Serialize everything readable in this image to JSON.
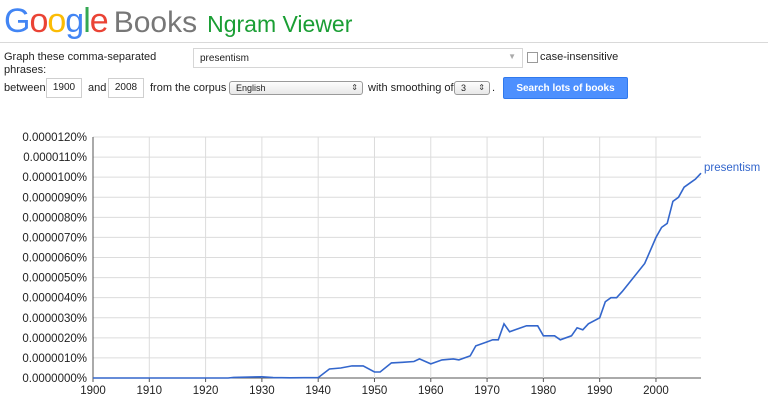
{
  "header": {
    "logo_google": "Google",
    "logo_books": "Books",
    "title": "Ngram Viewer",
    "logo_colors": [
      "#4285f4",
      "#ea4335",
      "#fbbc05",
      "#4285f4",
      "#34a853",
      "#ea4335"
    ]
  },
  "form": {
    "phrases_label_line1": "Graph these comma-separated",
    "phrases_label_line2": "phrases:",
    "phrases_value": "presentism",
    "case_insensitive_label": "case-insensitive",
    "case_insensitive_checked": false,
    "between_label": "between",
    "start_year": "1900",
    "and_label": "and",
    "end_year": "2008",
    "corpus_label": "from the corpus",
    "corpus_value": "English",
    "smoothing_label": "with smoothing of",
    "smoothing_value": "3",
    "period": ".",
    "search_button": "Search lots of books"
  },
  "chart_data": {
    "type": "line",
    "x_ticks": [
      1900,
      1910,
      1920,
      1930,
      1940,
      1950,
      1960,
      1970,
      1980,
      1990,
      2000
    ],
    "y_ticks": [
      "0.0000000%",
      "0.0000010%",
      "0.0000020%",
      "0.0000030%",
      "0.0000040%",
      "0.0000050%",
      "0.0000060%",
      "0.0000070%",
      "0.0000080%",
      "0.0000090%",
      "0.0000100%",
      "0.0000110%",
      "0.0000120%"
    ],
    "xlim": [
      1900,
      2008
    ],
    "ylim": [
      0,
      1.2e-05
    ],
    "grid": true,
    "series": [
      {
        "name": "presentism",
        "color": "#3366cc",
        "points": [
          [
            1900,
            0
          ],
          [
            1924,
            0
          ],
          [
            1925,
            3e-08
          ],
          [
            1930,
            6e-08
          ],
          [
            1932,
            2e-08
          ],
          [
            1935,
            1e-08
          ],
          [
            1940,
            2e-08
          ],
          [
            1942,
            4.5e-07
          ],
          [
            1944,
            5e-07
          ],
          [
            1946,
            6e-07
          ],
          [
            1948,
            6e-07
          ],
          [
            1950,
            3e-07
          ],
          [
            1951,
            3e-07
          ],
          [
            1953,
            7.5e-07
          ],
          [
            1955,
            7.8e-07
          ],
          [
            1957,
            8.2e-07
          ],
          [
            1958,
            9.5e-07
          ],
          [
            1960,
            7e-07
          ],
          [
            1962,
            9e-07
          ],
          [
            1964,
            9.5e-07
          ],
          [
            1965,
            9e-07
          ],
          [
            1967,
            1.1e-06
          ],
          [
            1968,
            1.6e-06
          ],
          [
            1970,
            1.8e-06
          ],
          [
            1971,
            1.9e-06
          ],
          [
            1972,
            1.9e-06
          ],
          [
            1973,
            2.7e-06
          ],
          [
            1974,
            2.3e-06
          ],
          [
            1975,
            2.4e-06
          ],
          [
            1976,
            2.5e-06
          ],
          [
            1977,
            2.6e-06
          ],
          [
            1979,
            2.6e-06
          ],
          [
            1980,
            2.1e-06
          ],
          [
            1982,
            2.1e-06
          ],
          [
            1983,
            1.9e-06
          ],
          [
            1985,
            2.1e-06
          ],
          [
            1986,
            2.5e-06
          ],
          [
            1987,
            2.4e-06
          ],
          [
            1988,
            2.7e-06
          ],
          [
            1990,
            3e-06
          ],
          [
            1991,
            3.8e-06
          ],
          [
            1992,
            4e-06
          ],
          [
            1993,
            4e-06
          ],
          [
            1994,
            4.3e-06
          ],
          [
            1996,
            5e-06
          ],
          [
            1998,
            5.7e-06
          ],
          [
            2000,
            7e-06
          ],
          [
            2001,
            7.5e-06
          ],
          [
            2002,
            7.7e-06
          ],
          [
            2003,
            8.8e-06
          ],
          [
            2004,
            9e-06
          ],
          [
            2005,
            9.5e-06
          ],
          [
            2006,
            9.7e-06
          ],
          [
            2007,
            9.9e-06
          ],
          [
            2008,
            1.02e-05
          ]
        ]
      }
    ]
  }
}
